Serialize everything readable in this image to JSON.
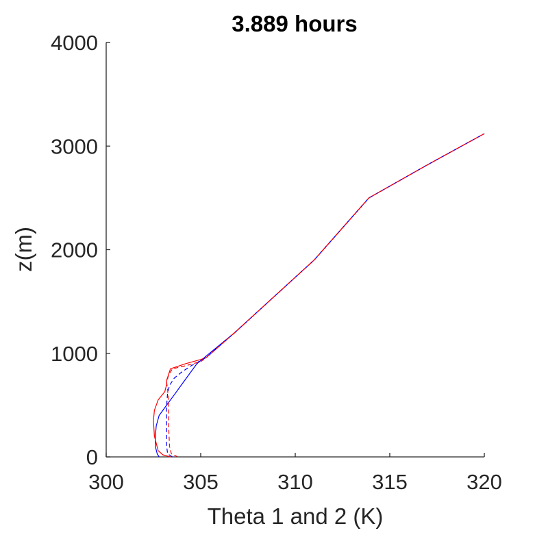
{
  "chart_data": {
    "type": "line",
    "title": "3.889 hours",
    "xlabel": "Theta 1 and 2 (K)",
    "ylabel": "z(m)",
    "xlim": [
      300,
      320
    ],
    "ylim": [
      0,
      4000
    ],
    "xticks": [
      "300",
      "305",
      "310",
      "315",
      "320"
    ],
    "yticks": [
      "0",
      "1000",
      "2000",
      "3000",
      "4000"
    ],
    "grid": false,
    "box": false,
    "colors": {
      "axis": "#262626",
      "blue": "#0000ff",
      "red": "#ff0000"
    },
    "series": [
      {
        "color": "#0000ff",
        "dash": "solid",
        "points": [
          [
            302.8,
            0
          ],
          [
            302.7,
            30
          ],
          [
            302.6,
            100
          ],
          [
            302.6,
            200
          ],
          [
            302.65,
            300
          ],
          [
            302.8,
            400
          ],
          [
            303.2,
            500
          ],
          [
            303.6,
            600
          ],
          [
            304.0,
            700
          ],
          [
            304.4,
            800
          ],
          [
            304.8,
            900
          ],
          [
            305.2,
            960
          ],
          [
            306.8,
            1200
          ],
          [
            308.6,
            1500
          ],
          [
            311.0,
            1900
          ],
          [
            313.9,
            2500
          ],
          [
            317.0,
            2820
          ],
          [
            320.0,
            3120
          ]
        ]
      },
      {
        "color": "#ff0000",
        "dash": "solid",
        "points": [
          [
            303.4,
            0
          ],
          [
            303.0,
            20
          ],
          [
            302.75,
            60
          ],
          [
            302.55,
            200
          ],
          [
            302.5,
            350
          ],
          [
            302.55,
            450
          ],
          [
            302.75,
            550
          ],
          [
            303.1,
            630
          ],
          [
            303.2,
            700
          ],
          [
            303.2,
            740
          ],
          [
            303.4,
            850
          ],
          [
            304.2,
            900
          ],
          [
            305.0,
            940
          ],
          [
            305.3,
            960
          ],
          [
            306.8,
            1200
          ],
          [
            308.6,
            1500
          ],
          [
            311.0,
            1900
          ],
          [
            313.9,
            2500
          ],
          [
            317.0,
            2820
          ],
          [
            320.0,
            3120
          ]
        ]
      },
      {
        "color": "#0000ff",
        "dash": "dashed",
        "points": [
          [
            303.5,
            0
          ],
          [
            303.25,
            30
          ],
          [
            303.2,
            100
          ],
          [
            303.2,
            300
          ],
          [
            303.2,
            500
          ],
          [
            303.25,
            620
          ],
          [
            303.35,
            690
          ],
          [
            303.6,
            760
          ],
          [
            304.0,
            820
          ],
          [
            304.5,
            880
          ],
          [
            305.0,
            930
          ],
          [
            305.3,
            960
          ],
          [
            306.8,
            1200
          ],
          [
            308.6,
            1500
          ],
          [
            311.0,
            1900
          ],
          [
            313.9,
            2500
          ],
          [
            317.0,
            2820
          ],
          [
            320.0,
            3120
          ]
        ]
      },
      {
        "color": "#ff0000",
        "dash": "dashed",
        "points": [
          [
            303.8,
            0
          ],
          [
            303.45,
            30
          ],
          [
            303.35,
            100
          ],
          [
            303.3,
            300
          ],
          [
            303.3,
            500
          ],
          [
            303.25,
            650
          ],
          [
            303.2,
            720
          ],
          [
            303.3,
            790
          ],
          [
            303.5,
            850
          ],
          [
            304.2,
            880
          ],
          [
            305.0,
            920
          ],
          [
            305.3,
            960
          ],
          [
            306.8,
            1200
          ],
          [
            308.6,
            1500
          ],
          [
            311.0,
            1900
          ],
          [
            313.9,
            2500
          ],
          [
            317.0,
            2820
          ],
          [
            320.0,
            3120
          ]
        ]
      }
    ]
  }
}
